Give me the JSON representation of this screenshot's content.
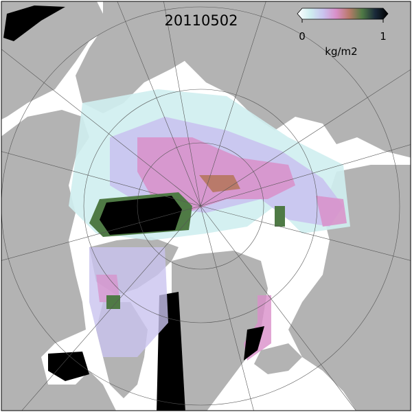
{
  "title": "20110502",
  "colorbar": {
    "ticks": [
      0,
      1
    ],
    "label": "kg/m2",
    "colormap": [
      "#ffffff",
      "#cfeef0",
      "#c9c3ef",
      "#d98fc9",
      "#b97a6a",
      "#4f7a45",
      "#1a2a3a",
      "#000000"
    ]
  }
}
